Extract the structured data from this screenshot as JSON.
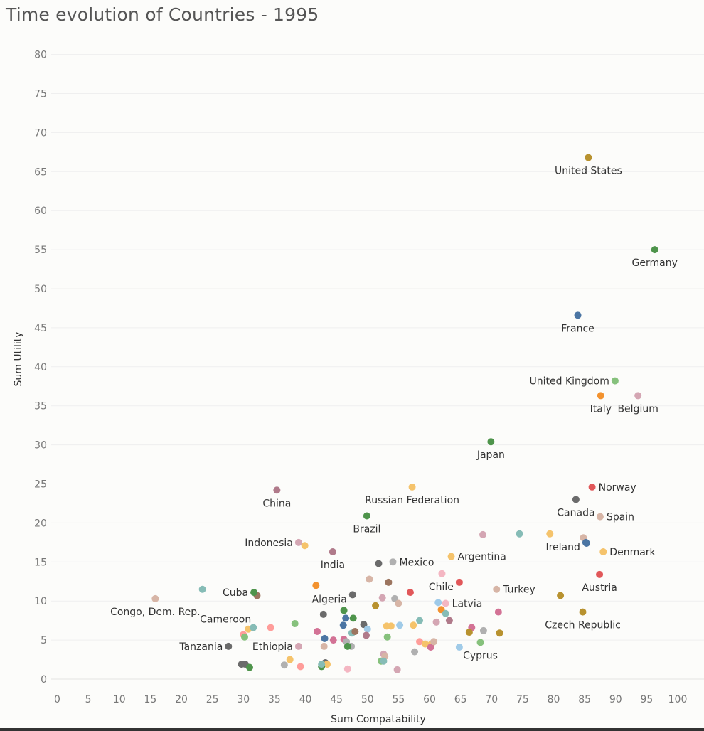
{
  "title": "Time evolution of Countries - 1995",
  "chart_data": {
    "type": "scatter",
    "title": "Time evolution of Countries - 1995",
    "xlabel": "Sum Compatability",
    "ylabel": "Sum Utility",
    "xlim": [
      0,
      100
    ],
    "ylim": [
      0,
      80
    ],
    "xticks": [
      "0",
      "5",
      "10",
      "15",
      "20",
      "25",
      "30",
      "35",
      "40",
      "45",
      "50",
      "55",
      "60",
      "65",
      "70",
      "75",
      "80",
      "85",
      "90",
      "95",
      "100"
    ],
    "yticks": [
      "0",
      "5",
      "10",
      "15",
      "20",
      "25",
      "30",
      "35",
      "40",
      "45",
      "50",
      "55",
      "60",
      "65",
      "70",
      "75",
      "80"
    ],
    "grid": "horizontal",
    "labeled_points": [
      {
        "label": "United States",
        "x": 85.6,
        "y": 66.8,
        "color": "#b8922f"
      },
      {
        "label": "Germany",
        "x": 96.3,
        "y": 55.0,
        "color": "#4e944b"
      },
      {
        "label": "France",
        "x": 83.9,
        "y": 46.6,
        "color": "#4b75a3"
      },
      {
        "label": "United Kingdom",
        "x": 89.9,
        "y": 38.2,
        "color": "#86c17c"
      },
      {
        "label": "Italy",
        "x": 87.6,
        "y": 36.3,
        "color": "#f3922e"
      },
      {
        "label": "Belgium",
        "x": 93.6,
        "y": 36.3,
        "color": "#d4a6b3"
      },
      {
        "label": "Japan",
        "x": 69.9,
        "y": 30.4,
        "color": "#4e944b"
      },
      {
        "label": "Norway",
        "x": 86.2,
        "y": 24.6,
        "color": "#e15759"
      },
      {
        "label": "China",
        "x": 35.4,
        "y": 24.2,
        "color": "#b07a8a"
      },
      {
        "label": "Russian Federation",
        "x": 57.2,
        "y": 24.6,
        "color": "#f5c36b"
      },
      {
        "label": "Canada",
        "x": 83.6,
        "y": 23.0,
        "color": "#6b6b6b"
      },
      {
        "label": "Spain",
        "x": 87.5,
        "y": 20.8,
        "color": "#d7b5a6"
      },
      {
        "label": "Brazil",
        "x": 49.9,
        "y": 20.9,
        "color": "#4e944b"
      },
      {
        "label": "Ireland",
        "x": 85.2,
        "y": 17.5,
        "color": "#4b75a3"
      },
      {
        "label": "Indonesia",
        "x": 38.9,
        "y": 17.5,
        "color": "#d4a6b3"
      },
      {
        "label": "Denmark",
        "x": 88.0,
        "y": 16.3,
        "color": "#f5c36b"
      },
      {
        "label": "India",
        "x": 44.4,
        "y": 16.3,
        "color": "#b07a8a"
      },
      {
        "label": "Argentina",
        "x": 63.5,
        "y": 15.7,
        "color": "#f5c36b"
      },
      {
        "label": "Mexico",
        "x": 54.1,
        "y": 15.0,
        "color": "#b0b0b0"
      },
      {
        "label": "Austria",
        "x": 87.4,
        "y": 13.4,
        "color": "#e15759"
      },
      {
        "label": "Chile",
        "x": 64.8,
        "y": 12.4,
        "color": "#e15759"
      },
      {
        "label": "Turkey",
        "x": 70.8,
        "y": 11.5,
        "color": "#d7b5a6"
      },
      {
        "label": "Cuba",
        "x": 31.7,
        "y": 11.1,
        "color": "#4e944b"
      },
      {
        "label": "Algeria",
        "x": 47.6,
        "y": 10.8,
        "color": "#6b6b6b"
      },
      {
        "label": "Congo, Dem. Rep.",
        "x": 15.8,
        "y": 10.3,
        "color": "#d7b5a6"
      },
      {
        "label": "Latvia",
        "x": 62.6,
        "y": 9.7,
        "color": "#f4b6c2"
      },
      {
        "label": "Czech Republic",
        "x": 84.7,
        "y": 8.6,
        "color": "#b8922f"
      },
      {
        "label": "Cameroon",
        "x": 31.6,
        "y": 6.6,
        "color": "#86bcb6"
      },
      {
        "label": "Cyprus",
        "x": 68.2,
        "y": 4.7,
        "color": "#86c17c"
      },
      {
        "label": "Ethiopia",
        "x": 38.9,
        "y": 4.2,
        "color": "#d4a6b3"
      },
      {
        "label": "Tanzania",
        "x": 27.6,
        "y": 4.2,
        "color": "#6b6b6b"
      }
    ],
    "other_points": [
      {
        "x": 23.4,
        "y": 11.5,
        "color": "#86bcb6"
      },
      {
        "x": 32.2,
        "y": 10.7,
        "color": "#9c755f"
      },
      {
        "x": 41.7,
        "y": 12.0,
        "color": "#f3922e"
      },
      {
        "x": 50.3,
        "y": 12.8,
        "color": "#d7b5a6"
      },
      {
        "x": 53.4,
        "y": 12.4,
        "color": "#9c755f"
      },
      {
        "x": 56.9,
        "y": 11.1,
        "color": "#e15759"
      },
      {
        "x": 62.0,
        "y": 13.5,
        "color": "#f4b6c2"
      },
      {
        "x": 68.6,
        "y": 18.5,
        "color": "#d4a6b3"
      },
      {
        "x": 74.5,
        "y": 18.6,
        "color": "#86bcb6"
      },
      {
        "x": 79.4,
        "y": 18.6,
        "color": "#f5c36b"
      },
      {
        "x": 84.8,
        "y": 18.1,
        "color": "#d7b5a6"
      },
      {
        "x": 39.9,
        "y": 17.1,
        "color": "#f5c36b"
      },
      {
        "x": 51.8,
        "y": 14.8,
        "color": "#6b6b6b"
      },
      {
        "x": 85.3,
        "y": 17.4,
        "color": "#4b75a3"
      },
      {
        "x": 81.1,
        "y": 10.7,
        "color": "#b8922f"
      },
      {
        "x": 71.1,
        "y": 8.6,
        "color": "#d37295"
      },
      {
        "x": 61.4,
        "y": 9.8,
        "color": "#9ecae9"
      },
      {
        "x": 61.9,
        "y": 8.9,
        "color": "#f3922e"
      },
      {
        "x": 62.6,
        "y": 8.4,
        "color": "#86bcb6"
      },
      {
        "x": 52.4,
        "y": 10.4,
        "color": "#d4a6b3"
      },
      {
        "x": 54.4,
        "y": 10.3,
        "color": "#b0b0b0"
      },
      {
        "x": 55.0,
        "y": 9.7,
        "color": "#d7b5a6"
      },
      {
        "x": 51.3,
        "y": 9.4,
        "color": "#b8922f"
      },
      {
        "x": 46.2,
        "y": 8.8,
        "color": "#4e944b"
      },
      {
        "x": 42.9,
        "y": 8.3,
        "color": "#6b6b6b"
      },
      {
        "x": 46.5,
        "y": 7.8,
        "color": "#4b75a3"
      },
      {
        "x": 47.7,
        "y": 7.8,
        "color": "#4e944b"
      },
      {
        "x": 49.4,
        "y": 7.0,
        "color": "#6b6b6b"
      },
      {
        "x": 46.1,
        "y": 6.9,
        "color": "#4b75a3"
      },
      {
        "x": 50.0,
        "y": 6.4,
        "color": "#a0cbe8"
      },
      {
        "x": 38.3,
        "y": 7.1,
        "color": "#86c17c"
      },
      {
        "x": 34.4,
        "y": 6.6,
        "color": "#ff9d9a"
      },
      {
        "x": 30.8,
        "y": 6.4,
        "color": "#f5c36b"
      },
      {
        "x": 30.0,
        "y": 5.7,
        "color": "#ff9d9a"
      },
      {
        "x": 30.2,
        "y": 5.4,
        "color": "#86c17c"
      },
      {
        "x": 41.9,
        "y": 6.1,
        "color": "#d37295"
      },
      {
        "x": 43.1,
        "y": 5.2,
        "color": "#4b75a3"
      },
      {
        "x": 44.5,
        "y": 5.0,
        "color": "#d37295"
      },
      {
        "x": 46.2,
        "y": 5.1,
        "color": "#d37295"
      },
      {
        "x": 46.6,
        "y": 4.8,
        "color": "#b0b0b0"
      },
      {
        "x": 47.5,
        "y": 5.9,
        "color": "#86bcb6"
      },
      {
        "x": 48.0,
        "y": 6.1,
        "color": "#9c755f"
      },
      {
        "x": 49.8,
        "y": 5.6,
        "color": "#b07a8a"
      },
      {
        "x": 53.2,
        "y": 5.4,
        "color": "#86c17c"
      },
      {
        "x": 53.1,
        "y": 6.8,
        "color": "#f5c36b"
      },
      {
        "x": 53.8,
        "y": 6.8,
        "color": "#f5c36b"
      },
      {
        "x": 55.2,
        "y": 6.9,
        "color": "#a0cbe8"
      },
      {
        "x": 57.4,
        "y": 6.9,
        "color": "#f5c36b"
      },
      {
        "x": 58.4,
        "y": 7.5,
        "color": "#86bcb6"
      },
      {
        "x": 61.1,
        "y": 7.3,
        "color": "#d4a6b3"
      },
      {
        "x": 63.2,
        "y": 7.5,
        "color": "#b07a8a"
      },
      {
        "x": 66.8,
        "y": 6.6,
        "color": "#d37295"
      },
      {
        "x": 68.7,
        "y": 6.2,
        "color": "#b0b0b0"
      },
      {
        "x": 66.4,
        "y": 6.0,
        "color": "#b8922f"
      },
      {
        "x": 71.3,
        "y": 5.9,
        "color": "#b8922f"
      },
      {
        "x": 58.4,
        "y": 4.8,
        "color": "#ff9d9a"
      },
      {
        "x": 59.3,
        "y": 4.5,
        "color": "#f5c36b"
      },
      {
        "x": 60.3,
        "y": 4.5,
        "color": "#f5c36b"
      },
      {
        "x": 60.2,
        "y": 4.1,
        "color": "#d37295"
      },
      {
        "x": 60.7,
        "y": 4.8,
        "color": "#d7b5a6"
      },
      {
        "x": 64.8,
        "y": 4.1,
        "color": "#a0cbe8"
      },
      {
        "x": 57.6,
        "y": 3.5,
        "color": "#b0b0b0"
      },
      {
        "x": 47.4,
        "y": 4.2,
        "color": "#b0b0b0"
      },
      {
        "x": 46.8,
        "y": 4.2,
        "color": "#4e944b"
      },
      {
        "x": 43.0,
        "y": 4.2,
        "color": "#d7b5a6"
      },
      {
        "x": 52.6,
        "y": 3.2,
        "color": "#d4a6b3"
      },
      {
        "x": 52.8,
        "y": 2.9,
        "color": "#d7b5a6"
      },
      {
        "x": 52.2,
        "y": 2.3,
        "color": "#86c17c"
      },
      {
        "x": 52.6,
        "y": 2.3,
        "color": "#86bcb6"
      },
      {
        "x": 54.8,
        "y": 1.2,
        "color": "#d4a6b3"
      },
      {
        "x": 46.8,
        "y": 1.3,
        "color": "#f4b6c2"
      },
      {
        "x": 43.2,
        "y": 2.1,
        "color": "#6b6b6b"
      },
      {
        "x": 43.5,
        "y": 1.9,
        "color": "#f5c36b"
      },
      {
        "x": 42.6,
        "y": 1.6,
        "color": "#4e944b"
      },
      {
        "x": 42.6,
        "y": 1.9,
        "color": "#86bcb6"
      },
      {
        "x": 39.2,
        "y": 1.6,
        "color": "#ff9d9a"
      },
      {
        "x": 37.5,
        "y": 2.5,
        "color": "#f5c36b"
      },
      {
        "x": 36.6,
        "y": 1.8,
        "color": "#b0b0b0"
      },
      {
        "x": 29.7,
        "y": 1.9,
        "color": "#6b6b6b"
      },
      {
        "x": 30.3,
        "y": 1.9,
        "color": "#6b6b6b"
      },
      {
        "x": 31.0,
        "y": 1.5,
        "color": "#4e944b"
      }
    ]
  }
}
